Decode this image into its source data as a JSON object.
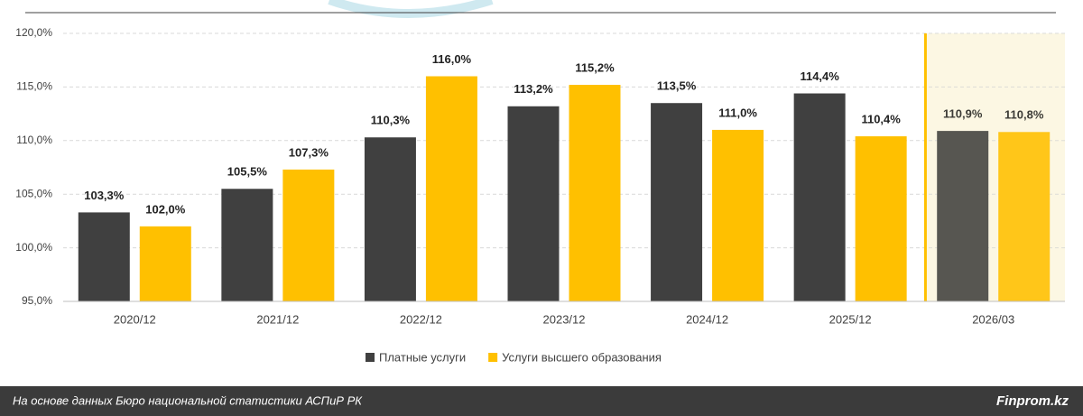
{
  "chart_data": {
    "type": "bar",
    "categories": [
      "2020/12",
      "2021/12",
      "2022/12",
      "2023/12",
      "2024/12",
      "2025/12",
      "2026/03"
    ],
    "series": [
      {
        "name": "Платные услуги",
        "color": "#404040",
        "values": [
          103.3,
          105.5,
          110.3,
          113.2,
          113.5,
          114.4,
          110.9
        ],
        "value_labels": [
          "103,3%",
          "105,5%",
          "110,3%",
          "113,2%",
          "113,5%",
          "114,4%",
          "110,9%"
        ]
      },
      {
        "name": "Услуги высшего образования",
        "color": "#FFC000",
        "values": [
          102.0,
          107.3,
          116.0,
          115.2,
          111.0,
          110.4,
          110.8
        ],
        "value_labels": [
          "102,0%",
          "107,3%",
          "116,0%",
          "115,2%",
          "111,0%",
          "110,4%",
          "110,8%"
        ]
      }
    ],
    "ylim": [
      95,
      120
    ],
    "yticks": [
      {
        "value": 95,
        "label": "95,0%"
      },
      {
        "value": 100,
        "label": "100,0%"
      },
      {
        "value": 105,
        "label": "105,0%"
      },
      {
        "value": 110,
        "label": "110,0%"
      },
      {
        "value": 115,
        "label": "115,0%"
      },
      {
        "value": 120,
        "label": "120,0%"
      }
    ],
    "grid": true,
    "legend": "bottom"
  },
  "footer": {
    "source": "На основе данных Бюро национальной статистики АСПиР РК",
    "brand": "Finprom.kz"
  }
}
